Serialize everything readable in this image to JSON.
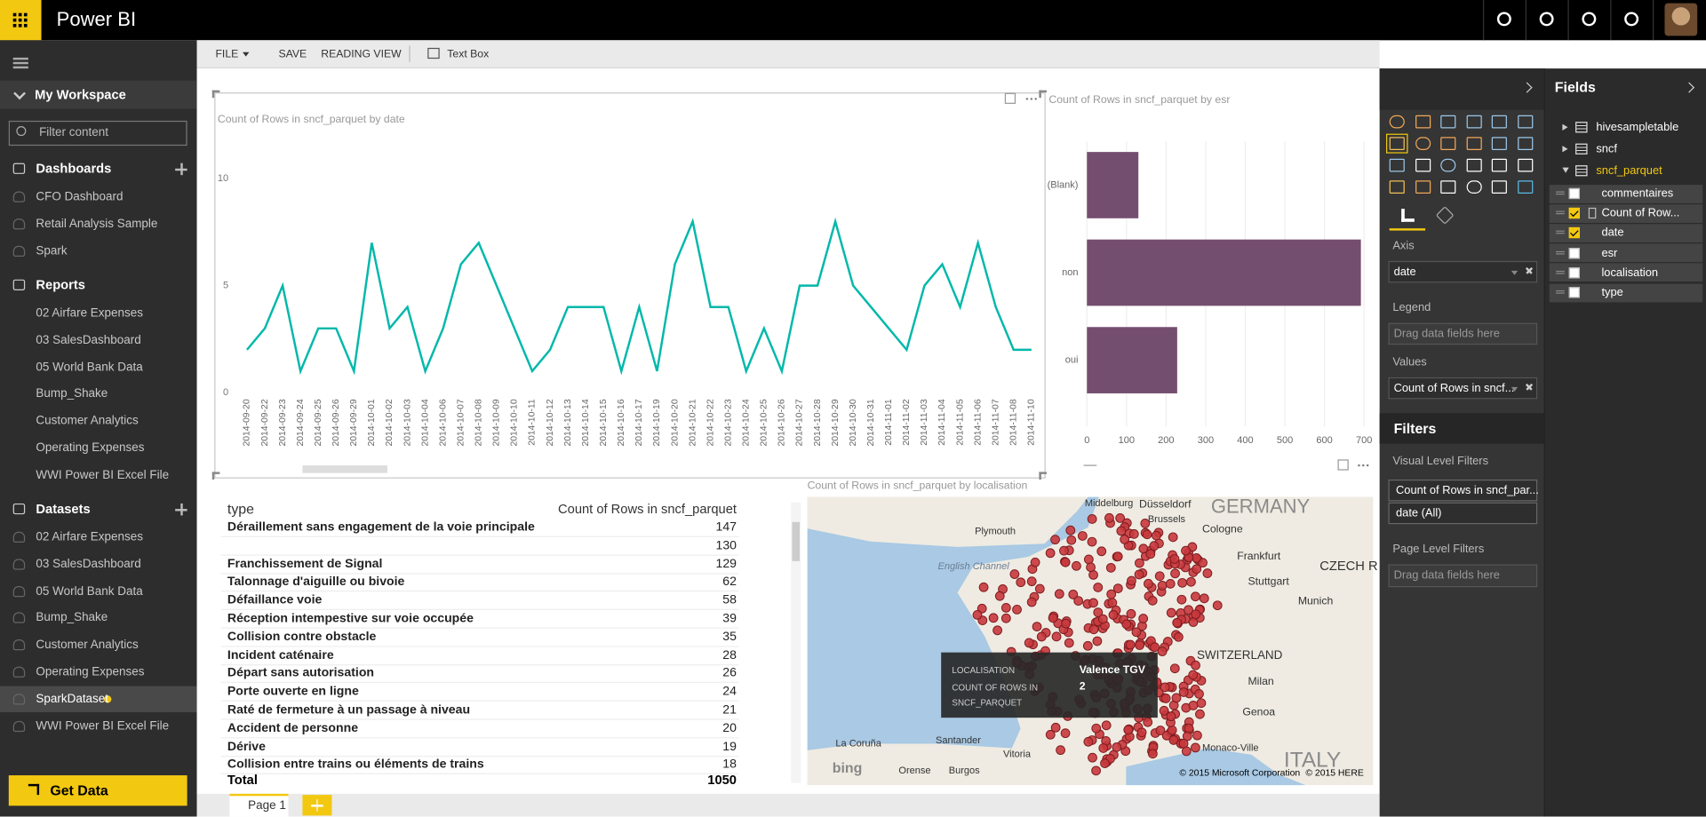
{
  "header": {
    "app_title": "Power BI"
  },
  "toolbar": {
    "file": "FILE",
    "save": "SAVE",
    "reading_view": "READING VIEW",
    "text_box": "Text Box"
  },
  "sidebar": {
    "workspace": "My Workspace",
    "filter_placeholder": "Filter content",
    "dashboards": {
      "title": "Dashboards",
      "items": [
        "CFO Dashboard",
        "Retail Analysis Sample",
        "Spark"
      ]
    },
    "reports": {
      "title": "Reports",
      "items": [
        "02 Airfare Expenses",
        "03 SalesDashboard",
        "05 World Bank Data",
        "Bump_Shake",
        "Customer Analytics",
        "Operating Expenses",
        "WWI Power BI Excel File"
      ]
    },
    "datasets": {
      "title": "Datasets",
      "items": [
        "02 Airfare Expenses",
        "03 SalesDashboard",
        "05 World Bank Data",
        "Bump_Shake",
        "Customer Analytics",
        "Operating Expenses",
        "SparkDataset",
        "WWI Power BI Excel File"
      ],
      "selected": 6
    },
    "get_data": "Get Data"
  },
  "chart_data": [
    {
      "type": "line",
      "title": "Count of Rows in sncf_parquet by date",
      "x": [
        "2014-09-20",
        "2014-09-22",
        "2014-09-23",
        "2014-09-24",
        "2014-09-25",
        "2014-09-26",
        "2014-09-29",
        "2014-10-01",
        "2014-10-02",
        "2014-10-03",
        "2014-10-04",
        "2014-10-06",
        "2014-10-07",
        "2014-10-08",
        "2014-10-09",
        "2014-10-10",
        "2014-10-11",
        "2014-10-12",
        "2014-10-13",
        "2014-10-14",
        "2014-10-15",
        "2014-10-16",
        "2014-10-17",
        "2014-10-19",
        "2014-10-20",
        "2014-10-21",
        "2014-10-22",
        "2014-10-23",
        "2014-10-24",
        "2014-10-25",
        "2014-10-26",
        "2014-10-27",
        "2014-10-28",
        "2014-10-29",
        "2014-10-30",
        "2014-10-31",
        "2014-11-01",
        "2014-11-02",
        "2014-11-03",
        "2014-11-04",
        "2014-11-05",
        "2014-11-06",
        "2014-11-07",
        "2014-11-08",
        "2014-11-10"
      ],
      "values": [
        2,
        3,
        5,
        1,
        3,
        3,
        1,
        7,
        3,
        4,
        1,
        3,
        6,
        7,
        5,
        3,
        1,
        2,
        4,
        4,
        4,
        1,
        4,
        1,
        6,
        8,
        4,
        4,
        1,
        3,
        1,
        5,
        5,
        8,
        5,
        4,
        3,
        2,
        5,
        6,
        4,
        7,
        4,
        2,
        2
      ],
      "color": "#01b8aa",
      "ylim": [
        0,
        12
      ],
      "yticks": [
        0,
        5,
        10
      ]
    },
    {
      "type": "bar",
      "orientation": "horizontal",
      "title": "Count of Rows in sncf_parquet by esr",
      "categories": [
        "(Blank)",
        "non",
        "oui"
      ],
      "values": [
        130,
        692,
        228
      ],
      "color": "#744e6f",
      "xlim": [
        0,
        720
      ],
      "xticks": [
        0,
        100,
        200,
        300,
        400,
        500,
        600,
        700
      ],
      "grid": true
    }
  ],
  "table": {
    "header": [
      "type",
      "Count of Rows in sncf_parquet"
    ],
    "rows": [
      [
        "Déraillement sans engagement de la voie principale",
        147
      ],
      [
        null,
        130
      ],
      [
        "Franchissement de Signal",
        129
      ],
      [
        "Talonnage d'aiguille ou bivoie",
        62
      ],
      [
        "Défaillance voie",
        58
      ],
      [
        "Réception intempestive sur voie occupée",
        39
      ],
      [
        "Collision contre obstacle",
        35
      ],
      [
        "Incident caténaire",
        28
      ],
      [
        "Départ sans autorisation",
        26
      ],
      [
        "Porte ouverte en ligne",
        24
      ],
      [
        "Raté de fermeture à un passage à niveau",
        21
      ],
      [
        "Accident de personne",
        20
      ],
      [
        "Dérive",
        19
      ],
      [
        "Collision entre trains ou éléments de trains",
        18
      ]
    ],
    "total": [
      "Total",
      1050
    ]
  },
  "map": {
    "title": "Count of Rows in sncf_parquet by localisation",
    "labels": [
      "GERMANY",
      "ITALY",
      "SWITZERLAND",
      "CZECH R",
      "Düsseldorf",
      "Middelburg",
      "Brussels",
      "Cologne",
      "Frankfurt",
      "Stuttgart",
      "Munich",
      "Milan",
      "Genoa",
      "Monaco-Ville",
      "Plymouth",
      "English Channel",
      "La Coruña",
      "Santander",
      "Vitoria",
      "Burgos",
      "Orense"
    ],
    "attribution": [
      "bing",
      "© 2015 Microsoft Corporation",
      "© 2015 HERE"
    ],
    "tooltip": [
      [
        "LOCALISATION",
        "Valence TGV"
      ],
      [
        "COUNT OF ROWS IN SNCF_PARQUET",
        2
      ]
    ]
  },
  "visualizations": {
    "axis_label": "Axis",
    "axis_field": "date",
    "legend_label": "Legend",
    "legend_placeholder": "Drag data fields here",
    "values_label": "Values",
    "values_field": "Count of Rows in sncf..."
  },
  "filters": {
    "title": "Filters",
    "visual_level": "Visual Level Filters",
    "visual_filters": [
      "Count of Rows in sncf_par...",
      "date (All)"
    ],
    "page_level": "Page Level Filters",
    "page_placeholder": "Drag data fields here"
  },
  "fields": {
    "title": "Fields",
    "tables": [
      "hivesampletable",
      "sncf",
      "sncf_parquet"
    ],
    "active_table": 2,
    "columns": [
      {
        "name": "commentaires",
        "checked": false
      },
      {
        "name": "Count of Row...",
        "checked": true
      },
      {
        "name": "date",
        "checked": true
      },
      {
        "name": "esr",
        "checked": false
      },
      {
        "name": "localisation",
        "checked": false
      },
      {
        "name": "type",
        "checked": false
      }
    ]
  },
  "pages": [
    "Page 1"
  ]
}
